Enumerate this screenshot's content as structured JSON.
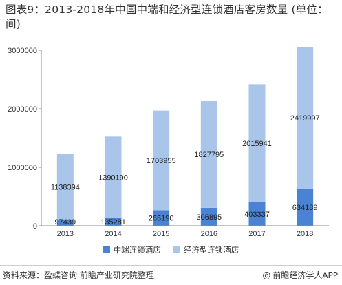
{
  "title": "图表9：2013-2018年中国中端和经济型连锁酒店客房数量 (单位：间)",
  "chart_data": {
    "type": "bar",
    "stacked": true,
    "categories": [
      "2013",
      "2014",
      "2015",
      "2016",
      "2017",
      "2018"
    ],
    "series": [
      {
        "name": "中端连锁酒店",
        "color": "#4a83d4",
        "values": [
          97439,
          135281,
          265190,
          306895,
          403337,
          634189
        ]
      },
      {
        "name": "经济型连锁酒店",
        "color": "#a9c5ea",
        "values": [
          1138394,
          1390190,
          1703955,
          1827795,
          2015941,
          2419997
        ]
      }
    ],
    "data_labels": {
      "bottom": [
        "97439",
        "135281",
        "265190",
        "306895",
        "403337",
        "634189"
      ],
      "top": [
        "1138394",
        "1390190",
        "1703955",
        "1827795",
        "2015941",
        "2419997"
      ]
    },
    "ylim": [
      0,
      3000000
    ],
    "yticks": [
      "0",
      "1000000",
      "2000000",
      "3000000"
    ],
    "ytick_values": [
      0,
      1000000,
      2000000,
      3000000
    ],
    "grid": false,
    "legend_position": "bottom"
  },
  "legend": {
    "item_1": "中端连锁酒店",
    "item_2": "经济型连锁酒店"
  },
  "footer": {
    "source": "资料来源：盈蝶咨询 前瞻产业研究院整理",
    "brand": "前瞻经济学人APP"
  }
}
